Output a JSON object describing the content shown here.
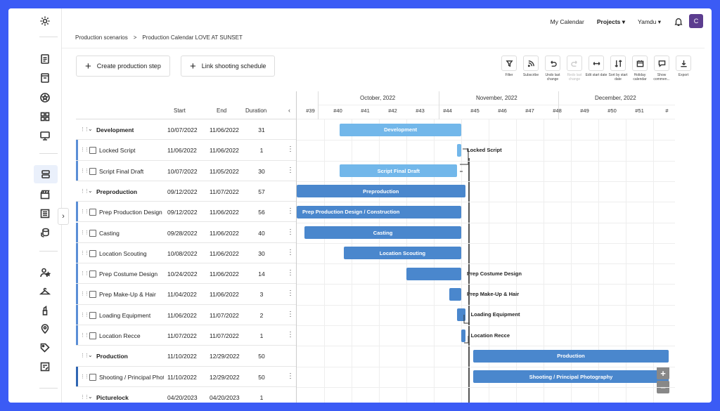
{
  "topnav": {
    "calendar": "My Calendar",
    "projects": "Projects",
    "user": "Yamdu",
    "avatar": "C"
  },
  "breadcrumb": {
    "parent": "Production scenarios",
    "sep": ">",
    "current": "Production Calendar LOVE AT SUNSET"
  },
  "buttons": {
    "create": "Create production step",
    "link": "Link shooting schedule"
  },
  "tools": [
    {
      "label": "Filter",
      "icon": "filter-icon"
    },
    {
      "label": "Subscribe",
      "icon": "rss-icon"
    },
    {
      "label": "Undo last change",
      "icon": "undo-icon"
    },
    {
      "label": "Redo last change",
      "icon": "redo-icon",
      "disabled": true
    },
    {
      "label": "Edit start date",
      "icon": "arrows-horizontal-icon"
    },
    {
      "label": "Sort by start date",
      "icon": "sort-icon"
    },
    {
      "label": "Holiday calendar",
      "icon": "calendar-icon"
    },
    {
      "label": "Show commen...",
      "icon": "comment-icon"
    },
    {
      "label": "Export",
      "icon": "download-icon"
    }
  ],
  "columns": {
    "start": "Start",
    "end": "End",
    "duration": "Duration"
  },
  "months": [
    "October, 2022",
    "November, 2022",
    "December, 2022"
  ],
  "weeks": [
    "#39",
    "#40",
    "#41",
    "#42",
    "#43",
    "#44",
    "#45",
    "#46",
    "#47",
    "#48",
    "#49",
    "#50",
    "#51",
    "#"
  ],
  "rows": [
    {
      "type": "group",
      "name": "Development",
      "start": "10/07/2022",
      "end": "11/06/2022",
      "duration": "31"
    },
    {
      "type": "task",
      "name": "Locked Script",
      "start": "11/06/2022",
      "end": "11/06/2022",
      "duration": "1",
      "accent": true
    },
    {
      "type": "task",
      "name": "Script Final Draft",
      "start": "10/07/2022",
      "end": "11/05/2022",
      "duration": "30",
      "accent": true
    },
    {
      "type": "group",
      "name": "Preproduction",
      "start": "09/12/2022",
      "end": "11/07/2022",
      "duration": "57"
    },
    {
      "type": "task",
      "name": "Prep Production Design / Construction",
      "start": "09/12/2022",
      "end": "11/06/2022",
      "duration": "56",
      "accent": true
    },
    {
      "type": "task",
      "name": "Casting",
      "start": "09/28/2022",
      "end": "11/06/2022",
      "duration": "40",
      "accent": true
    },
    {
      "type": "task",
      "name": "Location Scouting",
      "start": "10/08/2022",
      "end": "11/06/2022",
      "duration": "30",
      "accent": true
    },
    {
      "type": "task",
      "name": "Prep Costume Design",
      "start": "10/24/2022",
      "end": "11/06/2022",
      "duration": "14",
      "accent": true
    },
    {
      "type": "task",
      "name": "Prep Make-Up & Hair",
      "start": "11/04/2022",
      "end": "11/06/2022",
      "duration": "3",
      "accent": true
    },
    {
      "type": "task",
      "name": "Loading Equipment",
      "start": "11/06/2022",
      "end": "11/07/2022",
      "duration": "2",
      "accent": true
    },
    {
      "type": "task",
      "name": "Location Recce",
      "start": "11/07/2022",
      "end": "11/07/2022",
      "duration": "1",
      "accent": true
    },
    {
      "type": "group",
      "name": "Production",
      "start": "11/10/2022",
      "end": "12/29/2022",
      "duration": "50"
    },
    {
      "type": "task",
      "name": "Shooting / Principal Photography",
      "start": "11/10/2022",
      "end": "12/29/2022",
      "duration": "50",
      "accent": true,
      "accentDark": true
    },
    {
      "type": "group",
      "name": "Picturelock",
      "start": "04/20/2023",
      "end": "04/20/2023",
      "duration": "1"
    }
  ],
  "bars": [
    {
      "label": "Development",
      "style": "light",
      "labelPos": "inside"
    },
    {
      "label": "Locked Script",
      "style": "light",
      "labelPos": "outside"
    },
    {
      "label": "Script Final Draft",
      "style": "light",
      "labelPos": "inside"
    },
    {
      "label": "Preproduction",
      "style": "dark",
      "labelPos": "inside"
    },
    {
      "label": "Prep Production Design / Construction",
      "style": "dark",
      "labelPos": "left"
    },
    {
      "label": "Casting",
      "style": "dark",
      "labelPos": "inside"
    },
    {
      "label": "Location Scouting",
      "style": "dark",
      "labelPos": "inside"
    },
    {
      "label": "Prep Costume Design",
      "style": "dark",
      "labelPos": "outside"
    },
    {
      "label": "Prep Make-Up & Hair",
      "style": "dark",
      "labelPos": "outside"
    },
    {
      "label": "Loading Equipment",
      "style": "dark",
      "labelPos": "outside"
    },
    {
      "label": "Location Recce",
      "style": "dark",
      "labelPos": "outside"
    },
    {
      "label": "Production",
      "style": "dark",
      "labelPos": "inside"
    },
    {
      "label": "Shooting / Principal Photography",
      "style": "dark",
      "labelPos": "inside"
    }
  ],
  "zoom": {
    "in": "+",
    "out": "−"
  },
  "colors": {
    "accent": "#4a87cd",
    "light_bar": "#72b7ea",
    "background": "#3b5bf5"
  }
}
